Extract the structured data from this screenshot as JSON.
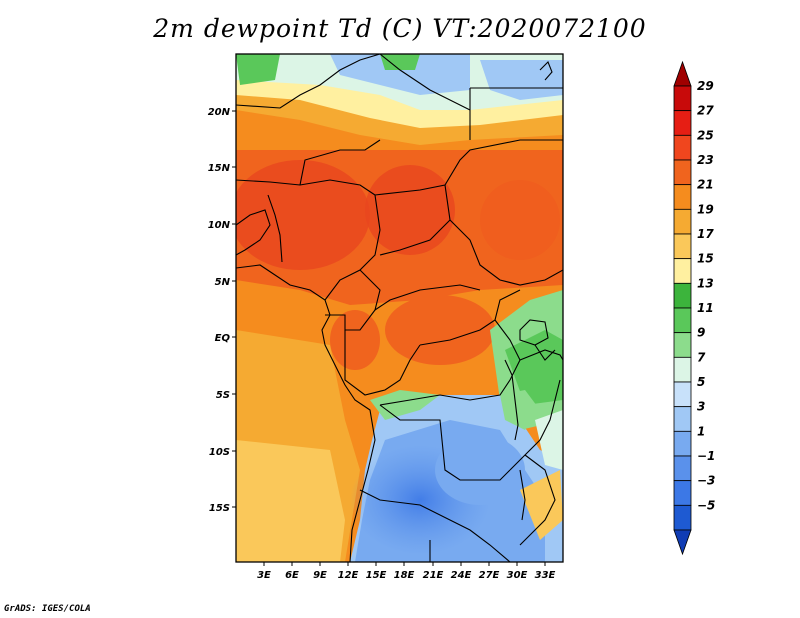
{
  "title": "2m dewpoint Td (C) VT:2020072100",
  "credit": "GrADS: IGES/COLA",
  "map": {
    "lat_labels": [
      "20N",
      "15N",
      "10N",
      "5N",
      "EQ",
      "5S",
      "10S",
      "15S"
    ],
    "lon_labels": [
      "3E",
      "6E",
      "9E",
      "12E",
      "15E",
      "18E",
      "21E",
      "24E",
      "27E",
      "30E",
      "33E"
    ]
  },
  "colorbar": {
    "labels": [
      "29",
      "27",
      "25",
      "23",
      "21",
      "19",
      "17",
      "15",
      "13",
      "11",
      "9",
      "7",
      "5",
      "3",
      "1",
      "−1",
      "−3",
      "−5"
    ],
    "colors": [
      "#a00000",
      "#c80a0a",
      "#e61e14",
      "#f0461e",
      "#f0641e",
      "#f58c1e",
      "#f5aa32",
      "#fac85a",
      "#fff0a0",
      "#3cb43c",
      "#5ac85a",
      "#8cdc8c",
      "#dcf5e6",
      "#c8e1fa",
      "#a0c8f5",
      "#78aaf0",
      "#5a91eb",
      "#3c78e6",
      "#1e5ad2",
      "#103cb4"
    ]
  }
}
